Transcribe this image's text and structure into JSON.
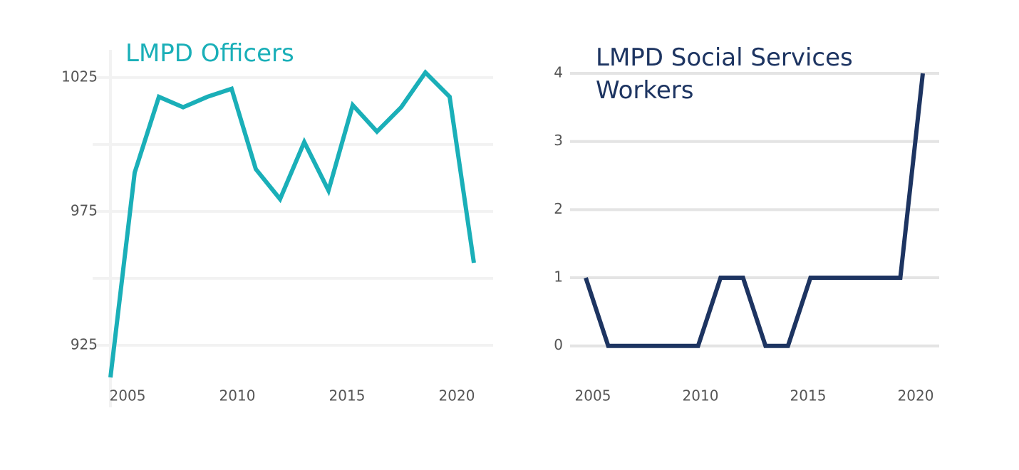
{
  "chart_data": [
    {
      "type": "line",
      "title": "LMPD Officers",
      "color": "#1aafb8",
      "x": [
        2005,
        2006,
        2007,
        2008,
        2009,
        2010,
        2011,
        2012,
        2013,
        2014,
        2015,
        2016,
        2017,
        2018,
        2019,
        2020
      ],
      "values": [
        913,
        989.5,
        1017.8,
        1013.9,
        1017.8,
        1020.8,
        990.8,
        979.6,
        1000.9,
        982.8,
        1014.7,
        1004.8,
        1013.9,
        1026.9,
        1017.8,
        955.8
      ],
      "xlim": [
        2005,
        2020
      ],
      "xticks": [
        2005,
        2010,
        2015,
        2020
      ],
      "ylim": [
        909,
        1038
      ],
      "yticks": [
        925,
        975,
        1025
      ],
      "ygrid": [
        925,
        950,
        975,
        1000,
        1025
      ],
      "grid": true
    },
    {
      "type": "line",
      "title": "LMPD Social Services Workers",
      "color": "#1d3461",
      "x": [
        2005,
        2006,
        2007,
        2008,
        2009,
        2010,
        2011,
        2012,
        2013,
        2014,
        2015,
        2016,
        2017,
        2018,
        2019,
        2020
      ],
      "values": [
        1,
        0,
        0,
        0,
        0,
        0,
        1,
        1,
        0,
        0,
        1,
        1,
        1,
        1,
        1,
        4
      ],
      "xlim": [
        2005,
        2020
      ],
      "xticks": [
        2005,
        2010,
        2015,
        2020
      ],
      "ylim": [
        -0.62,
        4.45
      ],
      "yticks": [
        0,
        1,
        2,
        3,
        4
      ],
      "ygrid": [
        0,
        1,
        2,
        3,
        4
      ],
      "grid": true
    }
  ]
}
